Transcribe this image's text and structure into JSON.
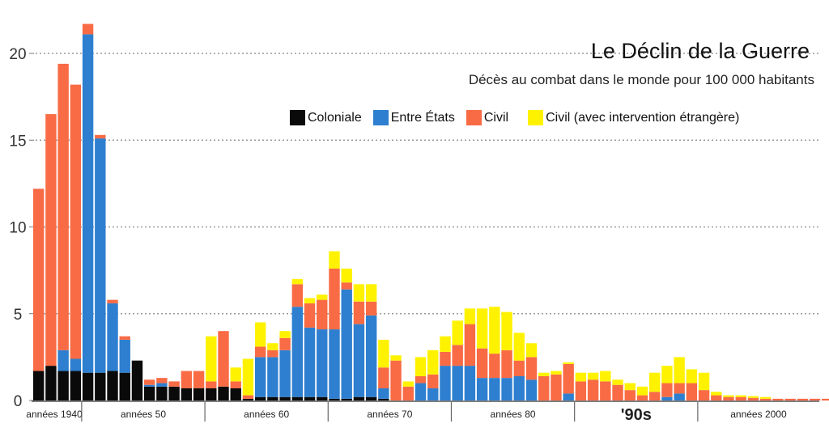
{
  "title": "Le Déclin de la Guerre",
  "subtitle": "Décès au combat dans le monde pour 100 000 habitants",
  "colors": {
    "coloniale": "#0a0a0a",
    "entre_etats": "#2e7fd0",
    "civil": "#f86b45",
    "civil_intervention": "#fff200"
  },
  "chart_data": {
    "type": "bar",
    "stacked": true,
    "title": "Le Déclin de la Guerre",
    "subtitle": "Décès au combat dans le monde pour 100 000 habitants",
    "xlabel": "",
    "ylabel": "",
    "ylim": [
      0,
      22
    ],
    "yticks": [
      0,
      5,
      10,
      15,
      20
    ],
    "grid": true,
    "legend_position": "top-right",
    "x": [
      1946,
      1947,
      1948,
      1949,
      1950,
      1951,
      1952,
      1953,
      1954,
      1955,
      1956,
      1957,
      1958,
      1959,
      1960,
      1961,
      1962,
      1963,
      1964,
      1965,
      1966,
      1967,
      1968,
      1969,
      1970,
      1971,
      1972,
      1973,
      1974,
      1975,
      1976,
      1977,
      1978,
      1979,
      1980,
      1981,
      1982,
      1983,
      1984,
      1985,
      1986,
      1987,
      1988,
      1989,
      1990,
      1991,
      1992,
      1993,
      1994,
      1995,
      1996,
      1997,
      1998,
      1999,
      2000,
      2001,
      2002,
      2003,
      2004,
      2005,
      2006,
      2007,
      2008,
      2009,
      2010,
      2011
    ],
    "decade_labels": [
      {
        "year": 1946,
        "label": "années 1940"
      },
      {
        "year": 1950,
        "label": "années 50"
      },
      {
        "year": 1960,
        "label": "années 60"
      },
      {
        "year": 1970,
        "label": "années 70"
      },
      {
        "year": 1980,
        "label": "années 80"
      },
      {
        "year": 1990,
        "label": "'90s"
      },
      {
        "year": 2000,
        "label": "années 2000"
      }
    ],
    "series": [
      {
        "name": "Coloniale",
        "color": "#0a0a0a",
        "values": [
          1.7,
          2.0,
          1.7,
          1.7,
          1.6,
          1.6,
          1.7,
          1.6,
          2.3,
          0.8,
          0.8,
          0.8,
          0.7,
          0.7,
          0.7,
          0.8,
          0.7,
          0.1,
          0.2,
          0.2,
          0.2,
          0.2,
          0.2,
          0.2,
          0.1,
          0.1,
          0.2,
          0.2,
          0.1,
          0,
          0,
          0,
          0,
          0,
          0,
          0,
          0,
          0,
          0,
          0,
          0,
          0,
          0,
          0,
          0,
          0,
          0,
          0,
          0,
          0,
          0,
          0,
          0,
          0,
          0,
          0,
          0,
          0,
          0,
          0,
          0,
          0,
          0,
          0,
          0,
          0
        ]
      },
      {
        "name": "Entre États",
        "color": "#2e7fd0",
        "values": [
          0,
          0,
          1.2,
          0.7,
          19.5,
          13.5,
          3.9,
          1.9,
          0,
          0.1,
          0.2,
          0,
          0,
          0,
          0,
          0,
          0,
          0,
          2.3,
          2.3,
          2.7,
          5.2,
          4.0,
          3.9,
          4.0,
          6.3,
          4.2,
          4.7,
          0.6,
          0,
          0,
          1.0,
          0.7,
          2.0,
          2.0,
          2.0,
          1.3,
          1.3,
          1.3,
          1.4,
          1.2,
          0,
          0,
          0.4,
          0,
          0,
          0,
          0,
          0,
          0,
          0,
          0.2,
          0.4,
          0,
          0,
          0,
          0,
          0,
          0,
          0,
          0,
          0,
          0,
          0,
          0,
          0
        ]
      },
      {
        "name": "Civil",
        "color": "#f86b45",
        "values": [
          10.5,
          14.5,
          16.5,
          15.8,
          0.6,
          0.2,
          0.2,
          0.2,
          0,
          0.3,
          0.3,
          0.3,
          1.0,
          1.0,
          0.4,
          3.2,
          0.4,
          0.2,
          0.6,
          0.4,
          0.7,
          1.3,
          1.4,
          1.7,
          3.5,
          0.4,
          1.3,
          0.8,
          1.2,
          2.3,
          0.8,
          0.4,
          0.8,
          0.8,
          1.2,
          2.4,
          1.7,
          1.4,
          1.6,
          0.9,
          1.3,
          1.4,
          1.5,
          1.7,
          1.1,
          1.2,
          1.1,
          0.9,
          0.6,
          0.3,
          0.5,
          0.8,
          0.6,
          1.0,
          0.6,
          0.3,
          0.2,
          0.2,
          0.15,
          0.1,
          0.1,
          0.1,
          0.1,
          0.1,
          0.1,
          0.2
        ]
      },
      {
        "name": "Civil (avec intervention étrangère)",
        "color": "#fff200",
        "values": [
          0,
          0,
          0,
          0,
          0,
          0,
          0,
          0,
          0,
          0,
          0,
          0,
          0,
          0,
          2.6,
          0,
          0.8,
          2.1,
          1.4,
          0.4,
          0.4,
          0.3,
          0.3,
          0.3,
          1.0,
          0.8,
          1.0,
          1.0,
          1.6,
          0.3,
          0.3,
          1.1,
          1.4,
          0.9,
          1.4,
          0.9,
          2.3,
          2.7,
          2.2,
          1.6,
          0.8,
          0.2,
          0.2,
          0.1,
          0.5,
          0.4,
          0.6,
          0.3,
          0.4,
          0.5,
          1.1,
          1.0,
          1.5,
          0.8,
          1.0,
          0.2,
          0.1,
          0.1,
          0.1,
          0.1,
          0,
          0,
          0,
          0,
          0,
          0
        ]
      }
    ]
  }
}
